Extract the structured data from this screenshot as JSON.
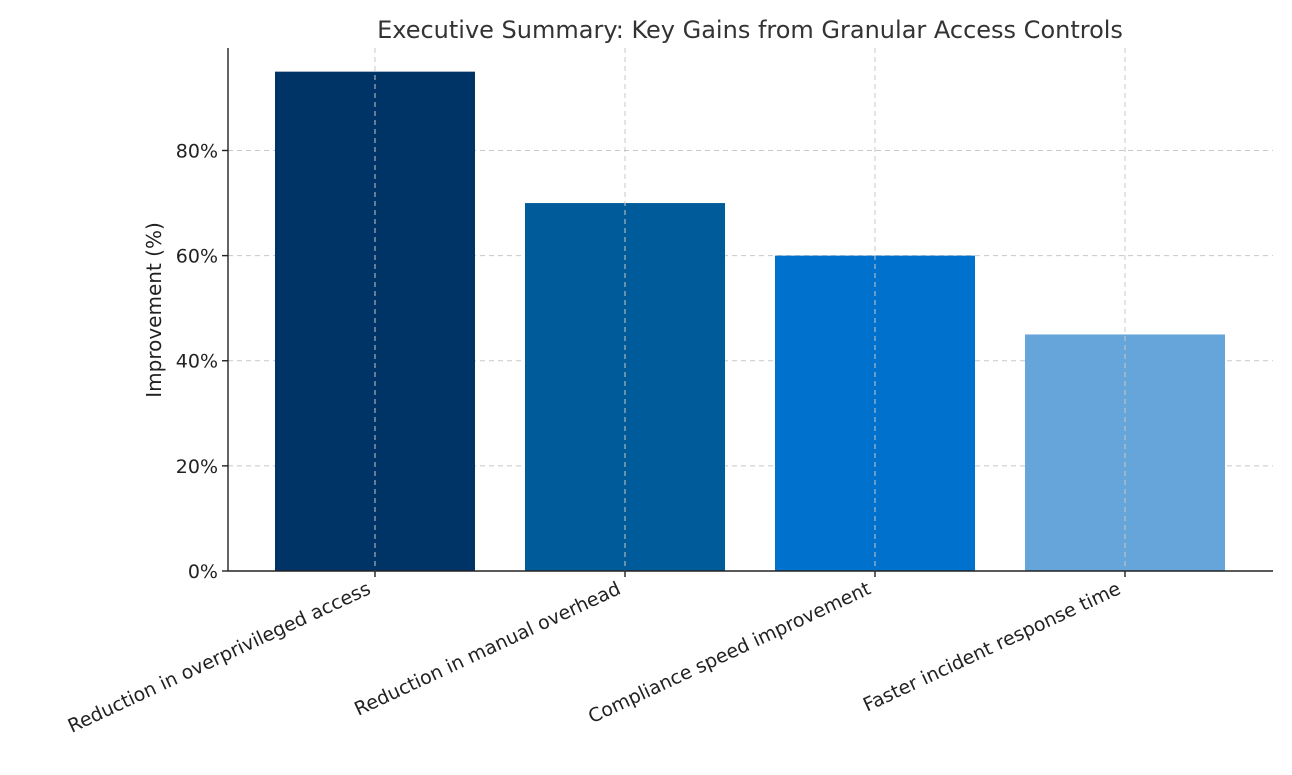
{
  "chart_data": {
    "type": "bar",
    "title": "Executive Summary: Key Gains from Granular Access Controls",
    "xlabel": "",
    "ylabel": "Improvement (%)",
    "categories": [
      "Reduction in overprivileged access",
      "Reduction in manual overhead",
      "Compliance speed improvement",
      "Faster incident response time"
    ],
    "values": [
      95,
      70,
      60,
      45
    ],
    "colors": [
      "#003366",
      "#005b9a",
      "#0072ce",
      "#66a5d9"
    ],
    "ylim": [
      0,
      100
    ],
    "yticks": [
      0,
      20,
      40,
      60,
      80
    ],
    "ytick_labels": [
      "0%",
      "20%",
      "40%",
      "60%",
      "80%"
    ],
    "grid": true,
    "legend": "none"
  }
}
